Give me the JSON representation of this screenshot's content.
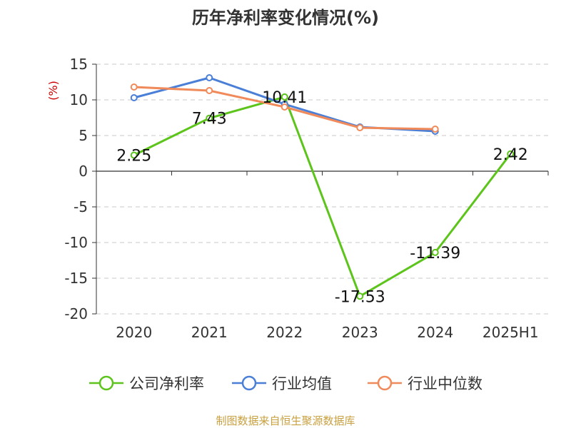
{
  "chart_data": {
    "type": "line",
    "title": "历年净利率变化情况(%)",
    "ylabel": "(%)",
    "categories": [
      "2020",
      "2021",
      "2022",
      "2023",
      "2024",
      "2025H1"
    ],
    "ylim": [
      -20,
      15
    ],
    "yticks": [
      15,
      10,
      5,
      0,
      -5,
      -10,
      -15,
      -20
    ],
    "grid": true,
    "legend_position": "bottom",
    "series": [
      {
        "name": "公司净利率",
        "color": "#5cc41a",
        "values": [
          2.25,
          7.43,
          10.41,
          -17.53,
          -11.39,
          2.42
        ],
        "labels": [
          "2.25",
          "7.43",
          "10.41",
          "-17.53",
          "-11.39",
          "2.42"
        ]
      },
      {
        "name": "行业均值",
        "color": "#4a7fd8",
        "values": [
          10.3,
          13.1,
          9.4,
          6.2,
          5.6,
          null
        ]
      },
      {
        "name": "行业中位数",
        "color": "#f08a5a",
        "values": [
          11.8,
          11.3,
          9.0,
          6.1,
          5.9,
          null
        ]
      }
    ]
  },
  "footer": {
    "source": "制图数据来自恒生聚源数据库"
  }
}
